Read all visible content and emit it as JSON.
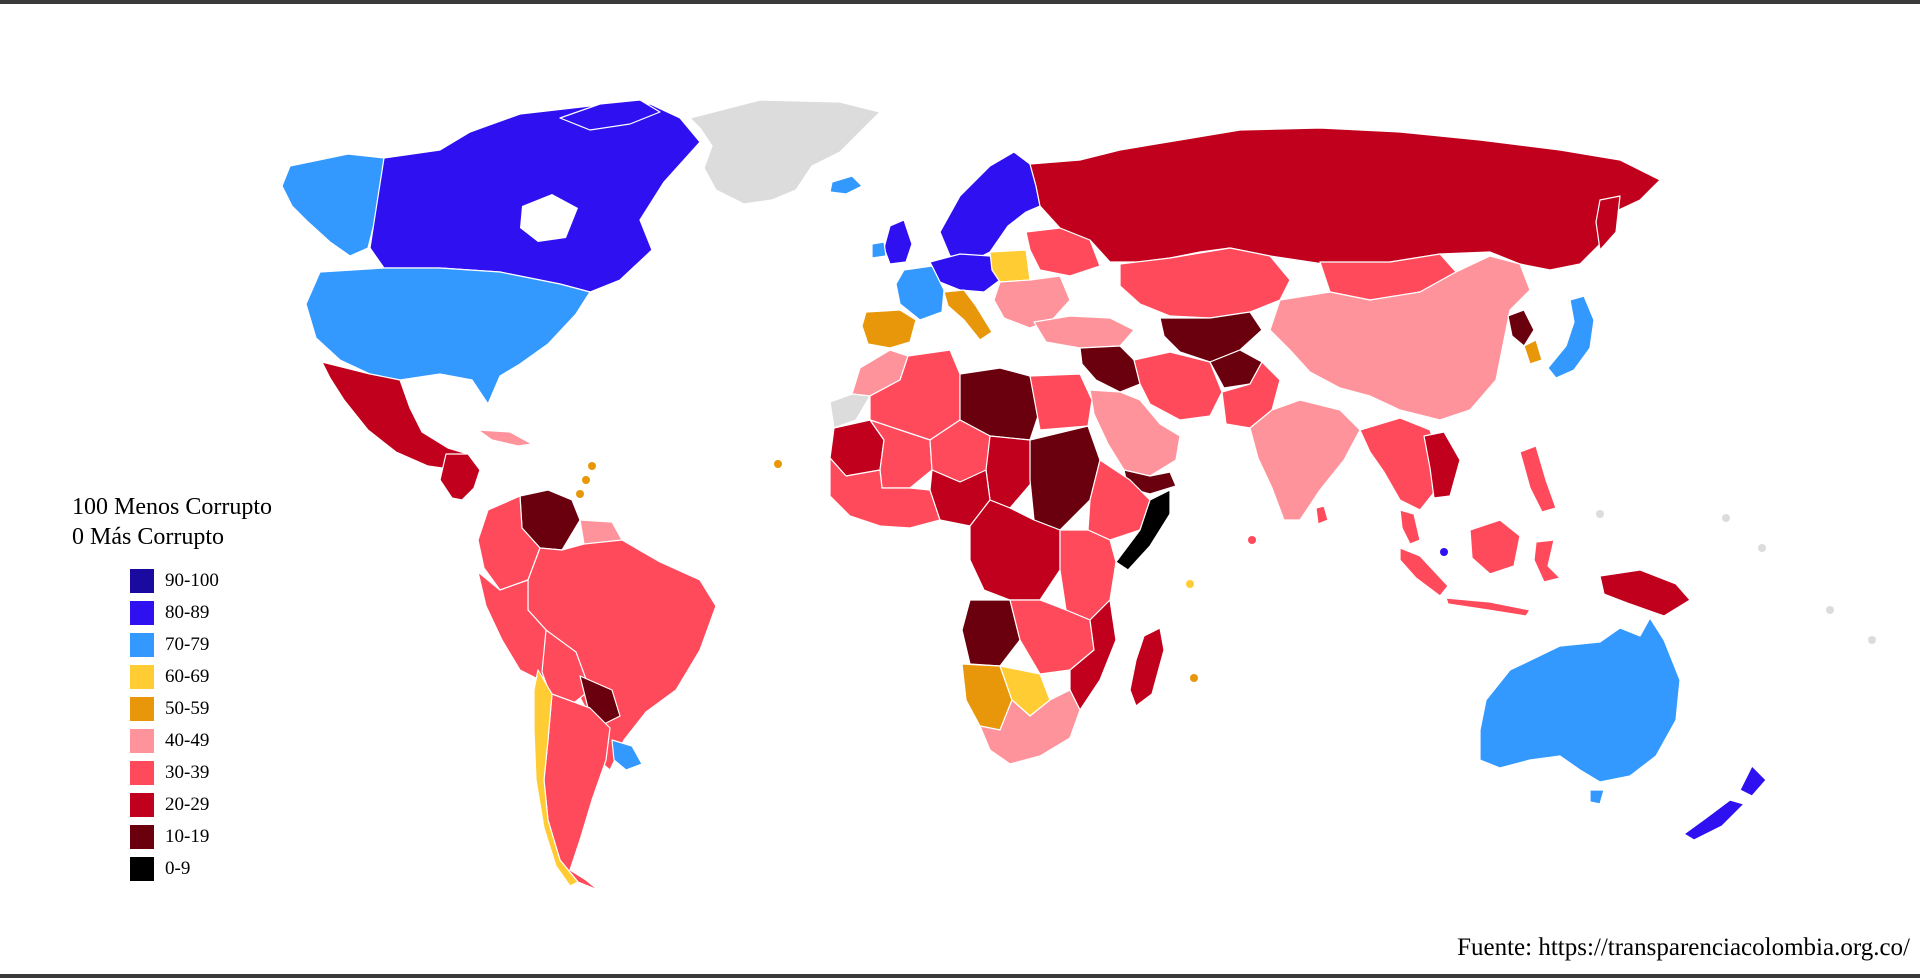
{
  "legend": {
    "title_line1": "100 Menos Corrupto",
    "title_line2": "0 Más Corrupto",
    "items": [
      {
        "label": "90-100",
        "color": "#1a0aa0"
      },
      {
        "label": "80-89",
        "color": "#2f10f0"
      },
      {
        "label": "70-79",
        "color": "#3399ff"
      },
      {
        "label": "60-69",
        "color": "#ffcc33"
      },
      {
        "label": "50-59",
        "color": "#e8960a"
      },
      {
        "label": "40-49",
        "color": "#ff939b"
      },
      {
        "label": "30-39",
        "color": "#ff4a5c"
      },
      {
        "label": "20-29",
        "color": "#c0001c"
      },
      {
        "label": "10-19",
        "color": "#6a000e"
      },
      {
        "label": "0-9",
        "color": "#000000"
      }
    ]
  },
  "no_data_color": "#dcdcdc",
  "source": "Fuente: https://transparenciacolombia.org.co/"
}
